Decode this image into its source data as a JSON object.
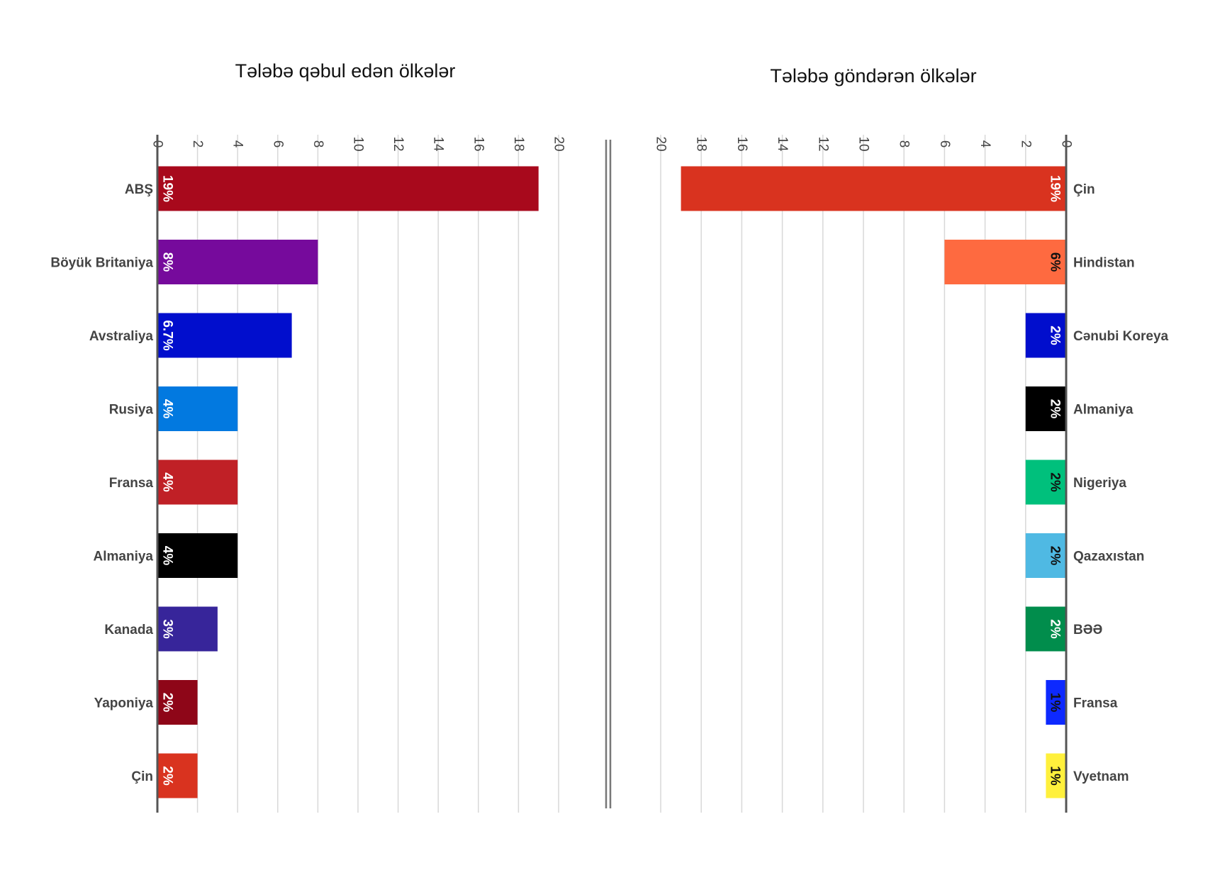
{
  "chart_data": [
    {
      "type": "bar",
      "orientation": "horizontal",
      "title": "Tələbə qəbul edən ölkələr",
      "xlim": [
        0,
        20
      ],
      "ticks": [
        "0",
        "2",
        "4",
        "6",
        "8",
        "10",
        "12",
        "14",
        "16",
        "18",
        "20"
      ],
      "grid": true,
      "categories": [
        "ABŞ",
        "Böyük Britaniya",
        "Avstraliya",
        "Rusiya",
        "Fransa",
        "Almaniya",
        "Kanada",
        "Yaponiya",
        "Çin"
      ],
      "values": [
        19,
        8,
        6.7,
        4,
        4,
        4,
        3,
        2,
        2
      ],
      "data_labels": [
        "19%",
        "8%",
        "6.7%",
        "4%",
        "4%",
        "4%",
        "3%",
        "2%",
        "2%"
      ],
      "colors": [
        "#a8091c",
        "#760a9c",
        "#010ecd",
        "#0279e0",
        "#c02026",
        "#000000",
        "#37259a",
        "#8e0618",
        "#d9331f"
      ],
      "label_colors": [
        "#ffffff",
        "#ffffff",
        "#ffffff",
        "#ffffff",
        "#ffffff",
        "#ffffff",
        "#ffffff",
        "#ffffff",
        "#ffffff"
      ]
    },
    {
      "type": "bar",
      "orientation": "horizontal",
      "direction": "reversed",
      "title": "Tələbə göndərən ölkələr",
      "xlim": [
        0,
        20
      ],
      "ticks": [
        "0",
        "2",
        "4",
        "6",
        "8",
        "10",
        "12",
        "14",
        "16",
        "18",
        "20"
      ],
      "grid": true,
      "categories": [
        "Çin",
        "Hindistan",
        "Cənubi Koreya",
        "Almaniya",
        "Nigeriya",
        "Qazaxıstan",
        "BƏƏ",
        "Fransa",
        "Vyetnam"
      ],
      "values": [
        19,
        6,
        2,
        2,
        2,
        2,
        2,
        1,
        1
      ],
      "data_labels": [
        "19%",
        "6%",
        "2%",
        "2%",
        "2%",
        "2%",
        "2%",
        "1%",
        "1%"
      ],
      "colors": [
        "#d9331f",
        "#fe6a40",
        "#010ecd",
        "#000000",
        "#00c07c",
        "#4fb9e3",
        "#018d4c",
        "#0d29ff",
        "#fff03c"
      ],
      "label_colors": [
        "#ffffff",
        "#111111",
        "#ffffff",
        "#ffffff",
        "#111111",
        "#111111",
        "#ffffff",
        "#111111",
        "#111111"
      ]
    }
  ]
}
